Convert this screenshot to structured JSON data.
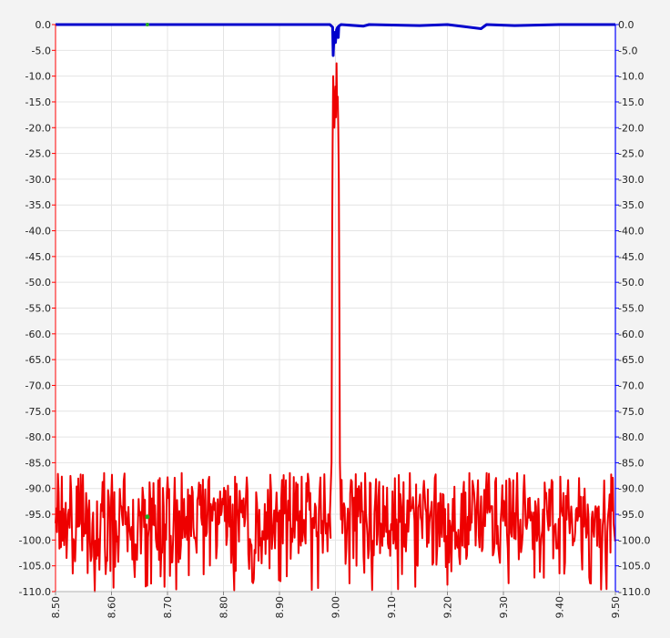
{
  "chart_data": {
    "type": "line",
    "title": "",
    "xlabel": "",
    "ylabel": "",
    "xlim": [
      8.5,
      9.5
    ],
    "ylim_left": [
      -110,
      0
    ],
    "ylim_right": [
      -110,
      0
    ],
    "grid": true,
    "x_ticks": [
      "8.50",
      "8.60",
      "8.70",
      "8.80",
      "8.90",
      "9.00",
      "9.10",
      "9.20",
      "9.30",
      "9.40",
      "9.50"
    ],
    "y_ticks_left": [
      "0.0",
      "-5.0",
      "-10.0",
      "-15.0",
      "-20.0",
      "-25.0",
      "-30.0",
      "-35.0",
      "-40.0",
      "-45.0",
      "-50.0",
      "-55.0",
      "-60.0",
      "-65.0",
      "-70.0",
      "-75.0",
      "-80.0",
      "-85.0",
      "-90.0",
      "-95.0",
      "-100.0",
      "-105.0",
      "-110.0"
    ],
    "y_ticks_right": [
      "0.0",
      "-5.0",
      "-10.0",
      "-15.0",
      "-20.0",
      "-25.0",
      "-30.0",
      "-35.0",
      "-40.0",
      "-45.0",
      "-50.0",
      "-55.0",
      "-60.0",
      "-65.0",
      "-70.0",
      "-75.0",
      "-80.0",
      "-85.0",
      "-90.0",
      "-95.0",
      "-100.0",
      "-105.0",
      "-110.0"
    ],
    "colors": {
      "left_axis": "#ff0000",
      "right_axis": "#0000ff",
      "grid": "#e4e4e4",
      "marker": "#22aa22"
    },
    "series": [
      {
        "axis": "right",
        "color": "#0000cc",
        "points": [
          [
            8.5,
            0.0
          ],
          [
            8.66,
            0.0
          ],
          [
            8.8,
            0.0
          ],
          [
            8.99,
            0.0
          ],
          [
            8.995,
            -0.5
          ],
          [
            8.996,
            -6.0
          ],
          [
            8.997,
            -3.0
          ],
          [
            8.999,
            -1.5
          ],
          [
            9.0,
            -3.5
          ],
          [
            9.002,
            -1.0
          ],
          [
            9.004,
            -0.5
          ],
          [
            9.005,
            -2.5
          ],
          [
            9.006,
            -0.3
          ],
          [
            9.01,
            0.0
          ],
          [
            9.05,
            -0.3
          ],
          [
            9.06,
            0.0
          ],
          [
            9.15,
            -0.2
          ],
          [
            9.2,
            0.0
          ],
          [
            9.26,
            -0.8
          ],
          [
            9.27,
            0.0
          ],
          [
            9.32,
            -0.2
          ],
          [
            9.4,
            0.0
          ],
          [
            9.5,
            0.0
          ]
        ]
      },
      {
        "axis": "left",
        "color": "#ee0000",
        "noise_floor": {
          "x_range": [
            8.5,
            9.5
          ],
          "y_range": [
            -110,
            -87
          ],
          "mean": -96.5
        },
        "points": [
          [
            8.99,
            -95.0
          ],
          [
            8.993,
            -85.0
          ],
          [
            8.994,
            -44.0
          ],
          [
            8.995,
            -23.0
          ],
          [
            8.996,
            -10.0
          ],
          [
            8.998,
            -20.0
          ],
          [
            9.0,
            -12.0
          ],
          [
            9.001,
            -18.0
          ],
          [
            9.002,
            -7.5
          ],
          [
            9.003,
            -16.0
          ],
          [
            9.004,
            -14.0
          ],
          [
            9.005,
            -20.0
          ],
          [
            9.006,
            -30.0
          ],
          [
            9.007,
            -55.0
          ],
          [
            9.008,
            -85.0
          ],
          [
            9.01,
            -96.0
          ],
          [
            9.053,
            -83.5
          ]
        ]
      }
    ],
    "markers": [
      {
        "x": 8.664,
        "y": -95.5
      }
    ]
  }
}
